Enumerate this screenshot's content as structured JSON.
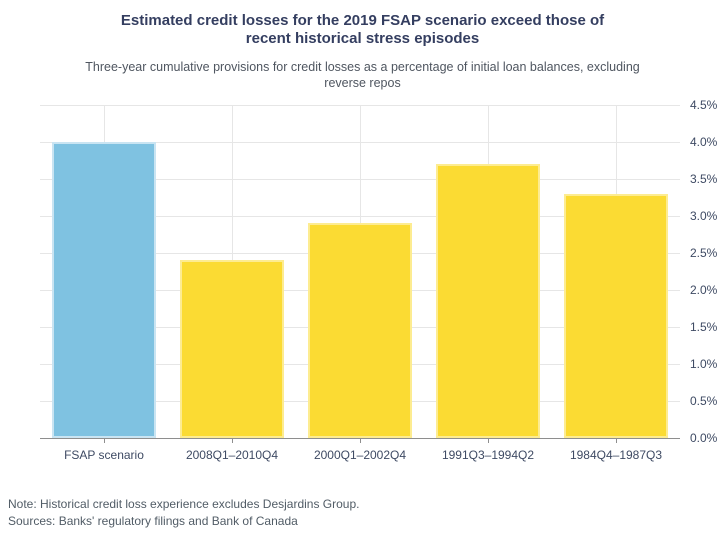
{
  "chart_data": {
    "type": "bar",
    "title": "Estimated credit losses for the 2019 FSAP scenario exceed those of recent historical stress episodes",
    "subtitle": "Three-year cumulative provisions for credit losses as a percentage of initial loan balances, excluding reverse repos",
    "categories": [
      "FSAP scenario",
      "2008Q1–2010Q4",
      "2000Q1–2002Q4",
      "1991Q3–1994Q2",
      "1984Q4–1987Q3"
    ],
    "values": [
      4.0,
      2.4,
      2.9,
      3.7,
      3.3
    ],
    "unit": "percent",
    "xlabel": "",
    "ylabel": "",
    "ylim": [
      0,
      4.5
    ],
    "ytick_step": 0.5,
    "ytick_labels": [
      "0.0%",
      "0.5%",
      "1.0%",
      "1.5%",
      "2.0%",
      "2.5%",
      "3.0%",
      "3.5%",
      "4.0%",
      "4.5%"
    ],
    "yaxis_position": "right",
    "grid": true,
    "legend_position": "none",
    "bar_colors": [
      "#7fc2e1",
      "#fbdb33",
      "#fbdb33",
      "#fbdb33",
      "#fbdb33"
    ],
    "bar_border_colors": [
      "#c9e4f2",
      "#fdec91",
      "#fdec91",
      "#fdec91",
      "#fdec91"
    ]
  },
  "footer": {
    "note": "Note: Historical credit loss experience excludes Desjardins Group.",
    "sources": "Sources: Banks' regulatory filings and Bank of Canada"
  },
  "style_colors": {
    "title_color": "#343e60",
    "subtitle_color": "#4f5660",
    "axis_label_color": "#3e4a63",
    "gridline_color": "#e6e6e6",
    "axis_line_color": "#8e8e8e",
    "note_color": "#515c66",
    "background": "#ffffff"
  }
}
